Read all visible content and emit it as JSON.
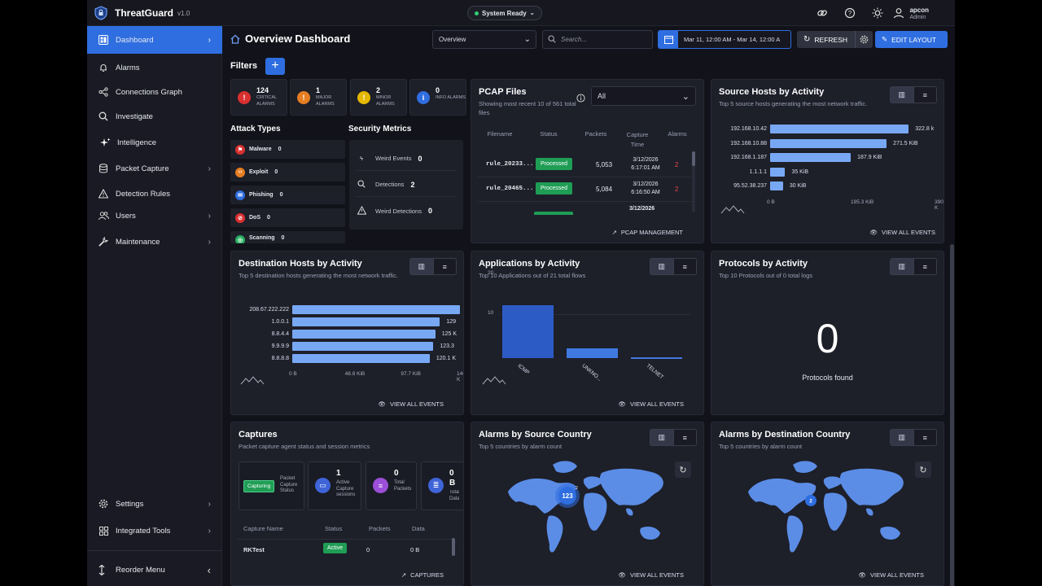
{
  "app": {
    "name": "ThreatGuard",
    "version": "v1.0",
    "status": "System Ready"
  },
  "user": {
    "name": "apcon",
    "role": "Admin"
  },
  "sidebar": {
    "items": [
      {
        "label": "Dashboard",
        "icon": "dashboard-icon",
        "active": true,
        "chevron": true
      },
      {
        "label": "Alarms",
        "icon": "bell-icon",
        "chevron": false
      },
      {
        "label": "Connections Graph",
        "icon": "share-icon",
        "chevron": false
      },
      {
        "label": "Investigate",
        "icon": "search-icon",
        "chevron": false
      },
      {
        "label": "Intelligence",
        "icon": "sparkle-icon",
        "chevron": false
      },
      {
        "label": "Packet Capture",
        "icon": "database-icon",
        "chevron": true
      },
      {
        "label": "Detection Rules",
        "icon": "warning-icon",
        "chevron": false
      },
      {
        "label": "Users",
        "icon": "users-icon",
        "chevron": true
      },
      {
        "label": "Maintenance",
        "icon": "wrench-icon",
        "chevron": true
      }
    ],
    "bottom": [
      {
        "label": "Settings",
        "icon": "gear-icon"
      },
      {
        "label": "Integrated Tools",
        "icon": "grid-icon"
      }
    ],
    "reorder": "Reorder Menu"
  },
  "header": {
    "title": "Overview Dashboard",
    "view_select": "Overview",
    "search_placeholder": "Search...",
    "date_range": "Mar 11, 12:00 AM - Mar 14, 12:00 A",
    "refresh": "REFRESH",
    "edit": "EDIT LAYOUT"
  },
  "filters": {
    "title": "Filters"
  },
  "alarms": [
    {
      "count": "124",
      "label": "CRITICAL ALARMS",
      "color": "#d93030",
      "glyph": "!"
    },
    {
      "count": "1",
      "label": "MAJOR ALARMS",
      "color": "#e67e22",
      "glyph": "!"
    },
    {
      "count": "2",
      "label": "MINOR ALARMS",
      "color": "#e5b700",
      "glyph": "!"
    },
    {
      "count": "0",
      "label": "INFO ALARMS",
      "color": "#2f6ee0",
      "glyph": "i"
    }
  ],
  "attack_types": {
    "title": "Attack Types",
    "items": [
      {
        "label": "Malware",
        "value": "0",
        "color": "#d93030"
      },
      {
        "label": "Exploit",
        "value": "0",
        "color": "#e67e22"
      },
      {
        "label": "Phishing",
        "value": "0",
        "color": "#2f6ee0"
      },
      {
        "label": "DoS",
        "value": "0",
        "color": "#d93030"
      },
      {
        "label": "Scanning",
        "value": "0",
        "color": "#27ae60"
      }
    ]
  },
  "security_metrics": {
    "title": "Security Metrics",
    "items": [
      {
        "label": "Weird Events",
        "value": "0"
      },
      {
        "label": "Detections",
        "value": "2"
      },
      {
        "label": "Weird Detections",
        "value": "0"
      }
    ]
  },
  "pcap": {
    "title": "PCAP Files",
    "subtitle": "Showing most recent 10 of 561 total files",
    "filter": "All",
    "columns": [
      "Filename",
      "Status",
      "Packets",
      "Capture Time",
      "Alarms"
    ],
    "rows": [
      {
        "file": "rule_20233...",
        "status": "Processed",
        "packets": "5,053",
        "time": "3/12/2026 6:17:01 AM",
        "alarms": "2"
      },
      {
        "file": "rule_20465...",
        "status": "Processed",
        "packets": "5,084",
        "time": "3/12/2026 6:16:50 AM",
        "alarms": "2"
      },
      {
        "file": "",
        "status": "",
        "packets": "",
        "time": "3/12/2026",
        "alarms": ""
      }
    ],
    "link": "PCAP MANAGEMENT"
  },
  "source_hosts": {
    "title": "Source Hosts by Activity",
    "subtitle": "Top 5 source hosts generating the most network traffic.",
    "link": "VIEW ALL EVENTS"
  },
  "dest_hosts": {
    "title": "Destination Hosts by Activity",
    "subtitle": "Top 5 destination hosts generating the most network traffic.",
    "link": "VIEW ALL EVENTS"
  },
  "applications": {
    "title": "Applications by Activity",
    "subtitle": "Top 10 Applications out of 21 total flows",
    "link": "VIEW ALL EVENTS"
  },
  "protocols": {
    "title": "Protocols by Activity",
    "subtitle": "Top 10 Protocols out of 0 total logs",
    "count": "0",
    "caption": "Protocols found"
  },
  "captures": {
    "title": "Captures",
    "subtitle": "Packet capture agent status and session metrics",
    "status_badge": "Capturing",
    "status_label": "Packet Capture Status",
    "boxes": [
      {
        "value": "1",
        "label": "Active Capture sessions",
        "color": "#3f64d8"
      },
      {
        "value": "0",
        "label": "Total Packets",
        "color": "#9b4fd8"
      },
      {
        "value": "0 B",
        "label": "Total Data",
        "color": "#3f64d8"
      }
    ],
    "columns": [
      "Capture Name",
      "Status",
      "Packets",
      "Data"
    ],
    "row": {
      "name": "RKTest",
      "status": "Active",
      "packets": "0",
      "data": "0 B"
    },
    "link": "CAPTURES"
  },
  "alarms_src": {
    "title": "Alarms by Source Country",
    "subtitle": "Top 5 countries by alarm count",
    "cluster": "123",
    "cluster_sup": "2",
    "link": "VIEW ALL EVENTS"
  },
  "alarms_dst": {
    "title": "Alarms by Destination Country",
    "subtitle": "Top 5 countries by alarm count",
    "cluster": "2",
    "link": "VIEW ALL EVENTS"
  },
  "chart_data": [
    {
      "type": "bar",
      "orientation": "horizontal",
      "categories": [
        "192.168.10.42",
        "192.168.10.88",
        "192.168.1.187",
        "1.1.1.1",
        "95.52.38.237"
      ],
      "values": [
        322.8,
        271.5,
        187.9,
        35,
        30
      ],
      "value_labels": [
        "322.8 k",
        "271.5 KiB",
        "187.9 KiB",
        "35 KiB",
        "30 KiB"
      ],
      "xticks": [
        "0 B",
        "195.3 KiB",
        "390.6 K"
      ],
      "xlim": [
        0,
        390.6
      ]
    },
    {
      "type": "bar",
      "orientation": "horizontal",
      "categories": [
        "208.67.222.222",
        "1.0.0.1",
        "8.8.4.4",
        "9.9.9.9",
        "8.8.8.8"
      ],
      "values": [
        146.5,
        129,
        125,
        123.3,
        120.1
      ],
      "value_labels": [
        "",
        "129",
        "125 K",
        "123.3",
        "120.1 K"
      ],
      "xticks": [
        "0 B",
        "48.8 KiB",
        "97.7 KiB",
        "146.5 K"
      ],
      "xlim": [
        0,
        146.5
      ]
    },
    {
      "type": "bar",
      "categories": [
        "ICMP",
        "UNKNO...",
        "TELNET"
      ],
      "values": [
        18,
        3.2,
        0.3
      ],
      "yticks": [
        "20",
        "10"
      ],
      "ylim": [
        0,
        20
      ]
    }
  ]
}
